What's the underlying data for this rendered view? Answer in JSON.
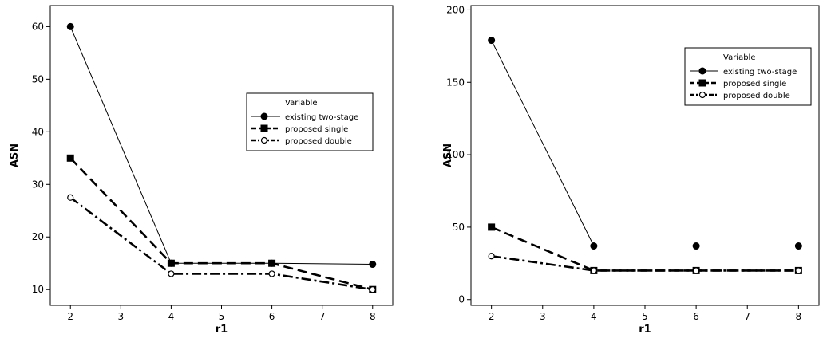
{
  "chart_data": [
    {
      "type": "line",
      "xlabel": "r1",
      "ylabel": "ASN",
      "x": [
        2,
        4,
        6,
        8
      ],
      "xticks": [
        2,
        3,
        4,
        5,
        6,
        7,
        8
      ],
      "yticks": [
        10,
        20,
        30,
        40,
        50,
        60
      ],
      "xlim": [
        1.6,
        8.4
      ],
      "ylim": [
        7,
        64
      ],
      "legend": {
        "title": "Variable",
        "placement": "top-right"
      },
      "grid": false,
      "series": [
        {
          "name": "existing two-stage",
          "values": [
            60,
            15,
            15,
            14.8
          ],
          "marker": "filled-circle",
          "dash": "solid",
          "weight": "thin"
        },
        {
          "name": "proposed single",
          "values": [
            35,
            15,
            15,
            10
          ],
          "marker": "filled-square",
          "dash": "dashed",
          "weight": "thick"
        },
        {
          "name": "proposed double",
          "values": [
            27.5,
            13,
            13,
            10
          ],
          "marker": "open-circle",
          "dash": "dash-dot",
          "weight": "thick"
        }
      ]
    },
    {
      "type": "line",
      "xlabel": "r1",
      "ylabel": "ASN",
      "x": [
        2,
        4,
        6,
        8
      ],
      "xticks": [
        2,
        3,
        4,
        5,
        6,
        7,
        8
      ],
      "yticks": [
        0,
        50,
        100,
        150,
        200
      ],
      "xlim": [
        1.6,
        8.4
      ],
      "ylim": [
        -4,
        203
      ],
      "legend": {
        "title": "Variable",
        "placement": "top-right"
      },
      "grid": false,
      "series": [
        {
          "name": "existing two-stage",
          "values": [
            179,
            37,
            37,
            37
          ],
          "marker": "filled-circle",
          "dash": "solid",
          "weight": "thin"
        },
        {
          "name": "proposed single",
          "values": [
            50,
            20,
            20,
            20
          ],
          "marker": "filled-square",
          "dash": "dashed",
          "weight": "thick"
        },
        {
          "name": "proposed double",
          "values": [
            30,
            20,
            20,
            20
          ],
          "marker": "open-circle",
          "dash": "dash-dot",
          "weight": "thick"
        }
      ]
    }
  ]
}
